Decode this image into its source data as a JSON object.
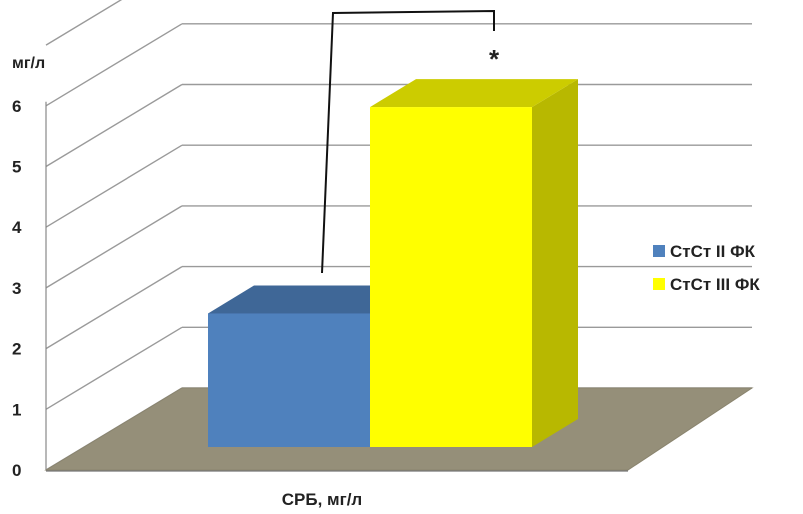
{
  "chart_data": {
    "type": "bar",
    "title": "",
    "ylabel": "мг/л",
    "xlabel": "СРБ, мг/л",
    "ylim": [
      0,
      6
    ],
    "yticks": [
      "0",
      "1",
      "2",
      "3",
      "4",
      "5",
      "6"
    ],
    "grid": true,
    "style": "3d-column",
    "legend_position": "right",
    "categories": [
      "СРБ, мг/л"
    ],
    "series": [
      {
        "name": "СтСт II ФК",
        "values": [
          2.2
        ],
        "color": "#4f81bd"
      },
      {
        "name": "СтСт III ФК",
        "values": [
          5.6
        ],
        "color": "#ffff00"
      }
    ],
    "annotation": {
      "text": "*",
      "type": "significance-bracket"
    }
  }
}
